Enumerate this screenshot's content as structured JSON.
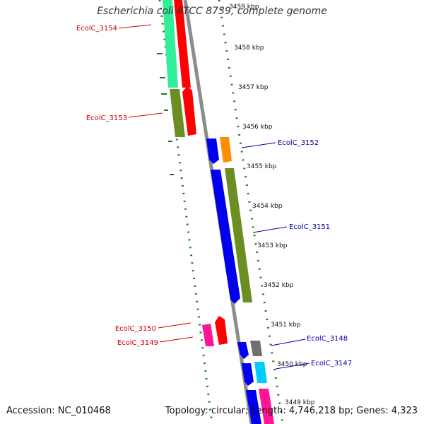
{
  "title": "Escherichia coli ATCC 8739, complete genome",
  "accession": "Accession: NC_010468",
  "summary": "Topology: circular; Length: 4,746,218 bp; Genes: 4,323",
  "colors": {
    "backbone": "#8c8c8c",
    "gc_dots": "#1f7a1f",
    "reverse_label": "#cc0000",
    "forward_label": "#0000aa"
  },
  "ticks": [
    "3459 kbp",
    "3458 kbp",
    "3457 kbp",
    "3456 kbp",
    "3455 kbp",
    "3454 kbp",
    "3453 kbp",
    "3452 kbp",
    "3451 kbp",
    "3450 kbp",
    "3449 kbp"
  ],
  "genes": {
    "EcolC_3154": "EcolC_3154",
    "EcolC_3153": "EcolC_3153",
    "EcolC_3152": "EcolC_3152",
    "EcolC_3151": "EcolC_3151",
    "EcolC_3150": "EcolC_3150",
    "EcolC_3149": "EcolC_3149",
    "EcolC_3148": "EcolC_3148",
    "EcolC_3147": "EcolC_3147"
  }
}
